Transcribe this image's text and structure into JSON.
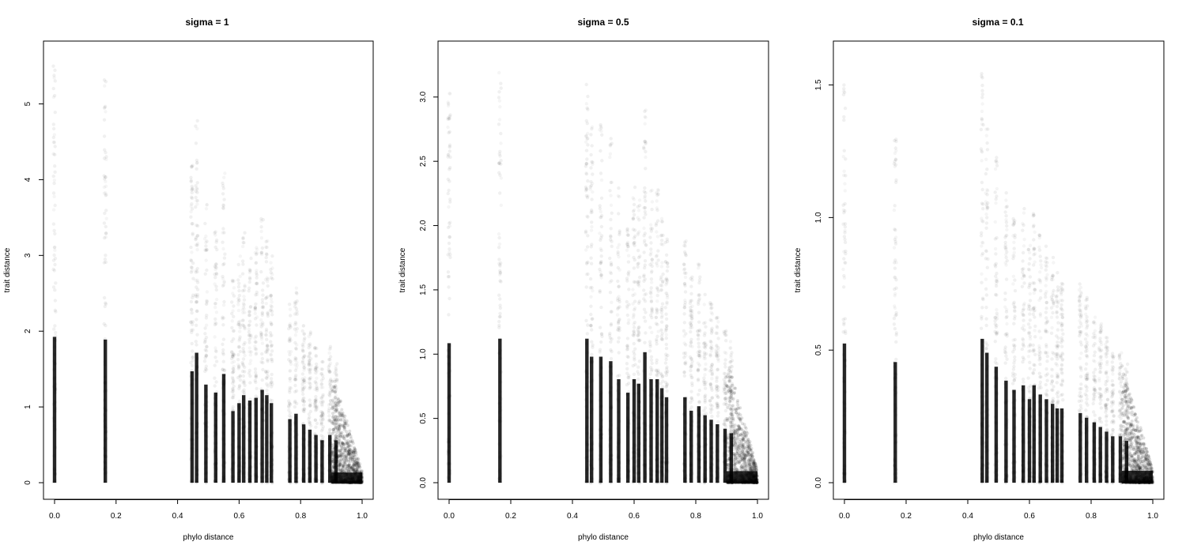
{
  "chart_data": [
    {
      "type": "scatter",
      "title": "sigma = 1",
      "xlabel": "phylo distance",
      "ylabel": "trait distance",
      "xlim": [
        0,
        1
      ],
      "ylim": [
        0,
        5.6
      ],
      "xticks": [
        "0.0",
        "0.2",
        "0.4",
        "0.6",
        "0.8",
        "1.0"
      ],
      "yticks": [
        "0",
        "1",
        "2",
        "3",
        "4",
        "5"
      ],
      "grid": false,
      "point_color": "#000000",
      "columns": [
        {
          "x": 0.0,
          "ymax": 5.5
        },
        {
          "x": 0.165,
          "ymax": 5.4
        },
        {
          "x": 0.447,
          "ymax": 4.2
        },
        {
          "x": 0.462,
          "ymax": 4.9
        },
        {
          "x": 0.492,
          "ymax": 3.7
        },
        {
          "x": 0.524,
          "ymax": 3.4
        },
        {
          "x": 0.55,
          "ymax": 4.1
        },
        {
          "x": 0.58,
          "ymax": 2.7
        },
        {
          "x": 0.6,
          "ymax": 3.0
        },
        {
          "x": 0.615,
          "ymax": 3.3
        },
        {
          "x": 0.635,
          "ymax": 3.1
        },
        {
          "x": 0.655,
          "ymax": 3.2
        },
        {
          "x": 0.675,
          "ymax": 3.5
        },
        {
          "x": 0.69,
          "ymax": 3.3
        },
        {
          "x": 0.705,
          "ymax": 3.0
        },
        {
          "x": 0.765,
          "ymax": 2.4
        },
        {
          "x": 0.785,
          "ymax": 2.6
        },
        {
          "x": 0.81,
          "ymax": 2.2
        },
        {
          "x": 0.83,
          "ymax": 2.0
        },
        {
          "x": 0.85,
          "ymax": 1.8
        },
        {
          "x": 0.87,
          "ymax": 1.6
        },
        {
          "x": 0.895,
          "ymax": 1.8
        },
        {
          "x": 0.915,
          "ymax": 1.6
        }
      ],
      "tail": {
        "x_from": 0.9,
        "x_to": 1.0,
        "ymax_start": 1.5,
        "ymax_end": 0.15
      }
    },
    {
      "type": "scatter",
      "title": "sigma = 0.5",
      "xlabel": "phylo distance",
      "ylabel": "trait distance",
      "xlim": [
        0,
        1
      ],
      "ylim": [
        0,
        3.3
      ],
      "xticks": [
        "0.0",
        "0.2",
        "0.4",
        "0.6",
        "0.8",
        "1.0"
      ],
      "yticks": [
        "0.0",
        "0.5",
        "1.0",
        "1.5",
        "2.0",
        "2.5",
        "3.0"
      ],
      "grid": false,
      "point_color": "#000000",
      "columns": [
        {
          "x": 0.0,
          "ymax": 3.1
        },
        {
          "x": 0.165,
          "ymax": 3.2
        },
        {
          "x": 0.447,
          "ymax": 3.2
        },
        {
          "x": 0.462,
          "ymax": 2.8
        },
        {
          "x": 0.492,
          "ymax": 2.8
        },
        {
          "x": 0.524,
          "ymax": 2.7
        },
        {
          "x": 0.55,
          "ymax": 2.3
        },
        {
          "x": 0.58,
          "ymax": 2.0
        },
        {
          "x": 0.6,
          "ymax": 2.3
        },
        {
          "x": 0.615,
          "ymax": 2.2
        },
        {
          "x": 0.635,
          "ymax": 2.9
        },
        {
          "x": 0.655,
          "ymax": 2.3
        },
        {
          "x": 0.675,
          "ymax": 2.3
        },
        {
          "x": 0.69,
          "ymax": 2.1
        },
        {
          "x": 0.705,
          "ymax": 1.9
        },
        {
          "x": 0.765,
          "ymax": 1.9
        },
        {
          "x": 0.785,
          "ymax": 1.6
        },
        {
          "x": 0.81,
          "ymax": 1.7
        },
        {
          "x": 0.83,
          "ymax": 1.5
        },
        {
          "x": 0.85,
          "ymax": 1.4
        },
        {
          "x": 0.87,
          "ymax": 1.3
        },
        {
          "x": 0.895,
          "ymax": 1.2
        },
        {
          "x": 0.915,
          "ymax": 1.1
        }
      ],
      "tail": {
        "x_from": 0.9,
        "x_to": 1.0,
        "ymax_start": 1.0,
        "ymax_end": 0.1
      }
    },
    {
      "type": "scatter",
      "title": "sigma = 0.1",
      "xlabel": "phylo distance",
      "ylabel": "trait distance",
      "xlim": [
        0,
        1
      ],
      "ylim": [
        0,
        1.6
      ],
      "xticks": [
        "0.0",
        "0.2",
        "0.4",
        "0.6",
        "0.8",
        "1.0"
      ],
      "yticks": [
        "0.0",
        "0.5",
        "1.0",
        "1.5"
      ],
      "grid": false,
      "point_color": "#000000",
      "columns": [
        {
          "x": 0.0,
          "ymax": 1.5
        },
        {
          "x": 0.165,
          "ymax": 1.3
        },
        {
          "x": 0.447,
          "ymax": 1.55
        },
        {
          "x": 0.462,
          "ymax": 1.4
        },
        {
          "x": 0.492,
          "ymax": 1.25
        },
        {
          "x": 0.524,
          "ymax": 1.1
        },
        {
          "x": 0.55,
          "ymax": 1.0
        },
        {
          "x": 0.58,
          "ymax": 1.05
        },
        {
          "x": 0.6,
          "ymax": 0.9
        },
        {
          "x": 0.615,
          "ymax": 1.05
        },
        {
          "x": 0.635,
          "ymax": 0.95
        },
        {
          "x": 0.655,
          "ymax": 0.9
        },
        {
          "x": 0.675,
          "ymax": 0.85
        },
        {
          "x": 0.69,
          "ymax": 0.8
        },
        {
          "x": 0.705,
          "ymax": 0.8
        },
        {
          "x": 0.765,
          "ymax": 0.75
        },
        {
          "x": 0.785,
          "ymax": 0.7
        },
        {
          "x": 0.81,
          "ymax": 0.65
        },
        {
          "x": 0.83,
          "ymax": 0.6
        },
        {
          "x": 0.85,
          "ymax": 0.55
        },
        {
          "x": 0.87,
          "ymax": 0.5
        },
        {
          "x": 0.895,
          "ymax": 0.5
        },
        {
          "x": 0.915,
          "ymax": 0.45
        }
      ],
      "tail": {
        "x_from": 0.9,
        "x_to": 1.0,
        "ymax_start": 0.45,
        "ymax_end": 0.05
      }
    }
  ]
}
